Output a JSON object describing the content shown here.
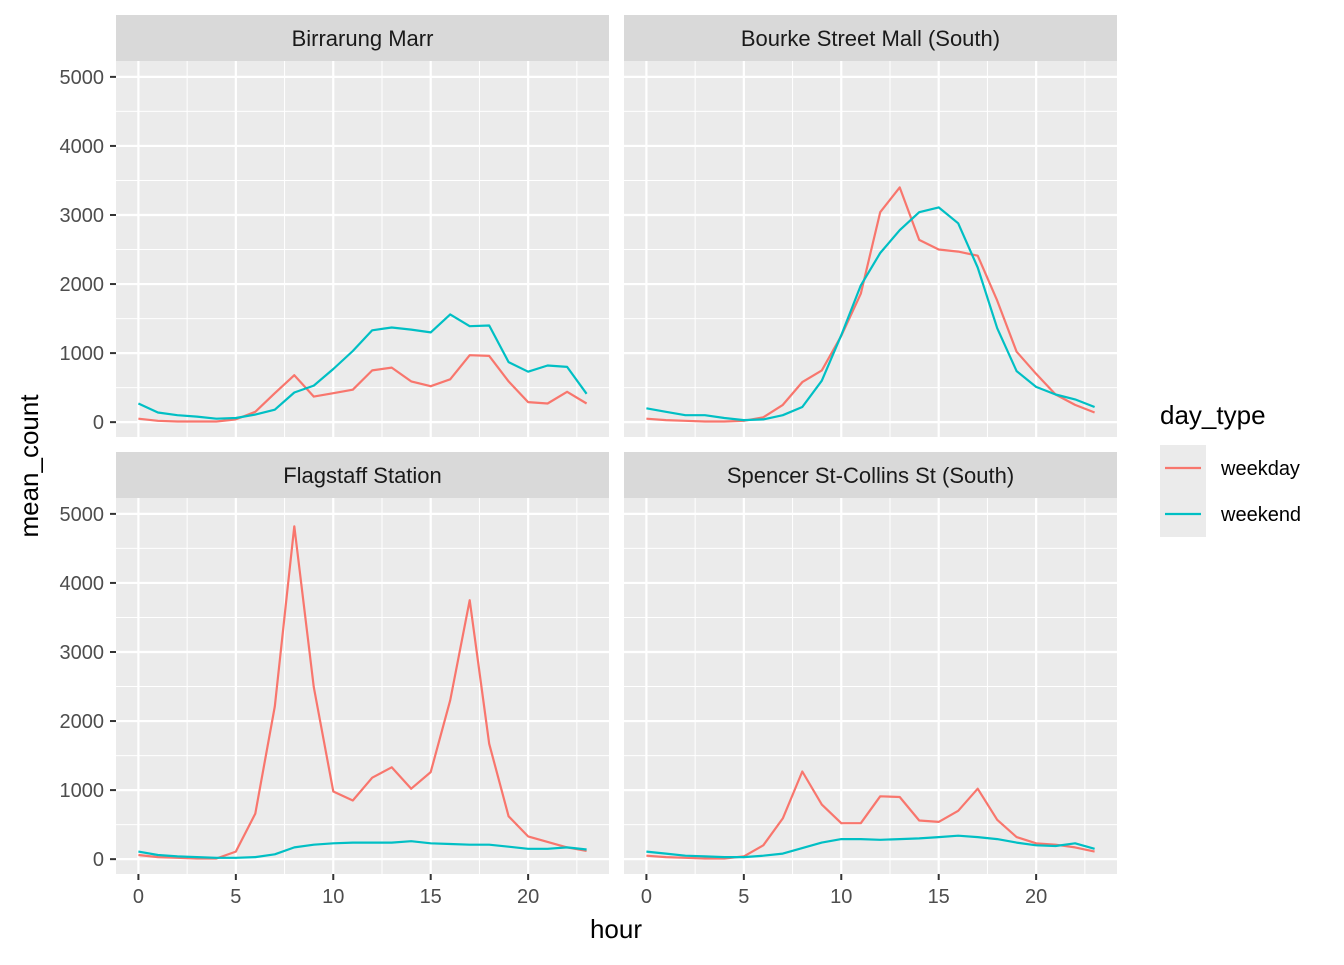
{
  "chart_data": {
    "type": "line",
    "xlabel": "hour",
    "ylabel": "mean_count",
    "xlim": [
      -1.15,
      24.15
    ],
    "ylim": [
      -215,
      5230
    ],
    "x_ticks": [
      0,
      5,
      10,
      15,
      20
    ],
    "x_tick_labels": [
      "0",
      "5",
      "10",
      "15",
      "20"
    ],
    "y_ticks": [
      0,
      1000,
      2000,
      3000,
      4000,
      5000
    ],
    "y_tick_labels": [
      "0",
      "1000",
      "2000",
      "3000",
      "4000",
      "5000"
    ],
    "grid": true,
    "legend": {
      "title": "day_type",
      "position": "right",
      "entries": [
        {
          "label": "weekday",
          "color": "#F8766D"
        },
        {
          "label": "weekend",
          "color": "#00BFC4"
        }
      ]
    },
    "x": [
      0,
      1,
      2,
      3,
      4,
      5,
      6,
      7,
      8,
      9,
      10,
      11,
      12,
      13,
      14,
      15,
      16,
      17,
      18,
      19,
      20,
      21,
      22,
      23
    ],
    "panels": [
      {
        "title": "Birrarung Marr",
        "series": [
          {
            "name": "weekday",
            "color": "#F8766D",
            "values": [
              50,
              20,
              10,
              10,
              10,
              40,
              150,
              420,
              680,
              370,
              420,
              470,
              750,
              790,
              590,
              520,
              620,
              970,
              960,
              590,
              290,
              270,
              440,
              270
            ]
          },
          {
            "name": "weekend",
            "color": "#00BFC4",
            "values": [
              270,
              140,
              100,
              80,
              50,
              60,
              110,
              180,
              430,
              530,
              770,
              1030,
              1330,
              1370,
              1340,
              1300,
              1560,
              1390,
              1400,
              870,
              730,
              820,
              800,
              410
            ]
          }
        ]
      },
      {
        "title": "Bourke Street Mall (South)",
        "series": [
          {
            "name": "weekday",
            "color": "#F8766D",
            "values": [
              50,
              30,
              20,
              10,
              10,
              20,
              70,
              250,
              580,
              750,
              1250,
              1860,
              3040,
              3400,
              2640,
              2500,
              2470,
              2410,
              1760,
              1020,
              700,
              400,
              250,
              140
            ]
          },
          {
            "name": "weekend",
            "color": "#00BFC4",
            "values": [
              200,
              150,
              100,
              100,
              60,
              30,
              40,
              100,
              220,
              600,
              1260,
              1980,
              2450,
              2780,
              3040,
              3110,
              2880,
              2240,
              1360,
              740,
              510,
              400,
              330,
              220
            ]
          }
        ]
      },
      {
        "title": "Flagstaff Station",
        "series": [
          {
            "name": "weekday",
            "color": "#F8766D",
            "values": [
              60,
              30,
              20,
              10,
              10,
              110,
              660,
              2210,
              4820,
              2490,
              980,
              850,
              1180,
              1330,
              1020,
              1260,
              2300,
              3750,
              1670,
              620,
              330,
              250,
              170,
              120
            ]
          },
          {
            "name": "weekend",
            "color": "#00BFC4",
            "values": [
              110,
              60,
              40,
              30,
              20,
              20,
              30,
              70,
              170,
              210,
              230,
              240,
              240,
              240,
              260,
              230,
              220,
              210,
              210,
              180,
              150,
              150,
              170,
              140
            ]
          }
        ]
      },
      {
        "title": "Spencer St-Collins St (South)",
        "series": [
          {
            "name": "weekday",
            "color": "#F8766D",
            "values": [
              50,
              30,
              20,
              10,
              10,
              40,
              200,
              590,
              1270,
              790,
              520,
              520,
              910,
              900,
              560,
              540,
              700,
              1020,
              570,
              320,
              230,
              210,
              170,
              110
            ]
          },
          {
            "name": "weekend",
            "color": "#00BFC4",
            "values": [
              110,
              80,
              50,
              40,
              30,
              30,
              50,
              80,
              160,
              240,
              290,
              290,
              280,
              290,
              300,
              320,
              340,
              320,
              290,
              240,
              200,
              190,
              230,
              150
            ]
          }
        ]
      }
    ]
  }
}
